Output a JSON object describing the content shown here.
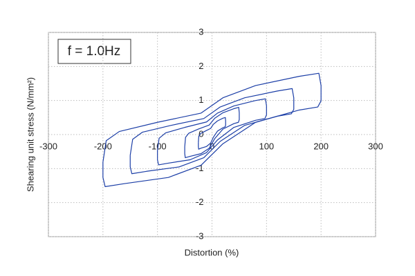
{
  "chart_data": {
    "type": "line",
    "annotation": "f = 1.0Hz",
    "x_label": "Distortion (%)",
    "y_label": "Shearing unit stress (N/mm²)",
    "xlim": [
      -300,
      300
    ],
    "xticks": [
      -300,
      -200,
      -100,
      0,
      100,
      200,
      300
    ],
    "ylim": [
      -3,
      3
    ],
    "yticks": [
      -3,
      -2,
      -1,
      0,
      1,
      2,
      3
    ],
    "grid": true,
    "series": [
      {
        "color": "#1a3da6",
        "x": [
          -200,
          -194,
          -170,
          -100,
          -20,
          20,
          80,
          160,
          196,
          200,
          200,
          194,
          160,
          80,
          20,
          -20,
          -80,
          -160,
          -196,
          -200,
          -200
        ],
        "values": [
          -0.81,
          -0.18,
          0.09,
          0.36,
          0.63,
          1.08,
          1.44,
          1.71,
          1.8,
          1.44,
          0.99,
          0.81,
          0.72,
          0.36,
          -0.27,
          -0.9,
          -1.26,
          -1.44,
          -1.53,
          -1.26,
          -0.81
        ]
      },
      {
        "color": "#1a3da6",
        "x": [
          -150,
          -145.5,
          -127.5,
          -75,
          -15,
          15,
          60,
          120,
          147,
          150,
          150,
          145.5,
          120,
          60,
          15,
          -15,
          -60,
          -120,
          -147,
          -150,
          -150
        ],
        "values": [
          -0.61,
          -0.14,
          0.07,
          0.27,
          0.47,
          0.81,
          1.08,
          1.28,
          1.35,
          1.08,
          0.74,
          0.61,
          0.54,
          0.27,
          -0.2,
          -0.68,
          -0.95,
          -1.08,
          -1.15,
          -0.95,
          -0.61
        ]
      },
      {
        "color": "#1a3da6",
        "x": [
          -100,
          -97,
          -85,
          -50,
          -10,
          10,
          40,
          80,
          98,
          100,
          100,
          97,
          80,
          40,
          10,
          -10,
          -40,
          -80,
          -98,
          -100,
          -100
        ],
        "values": [
          -0.47,
          -0.11,
          0.05,
          0.21,
          0.37,
          0.63,
          0.84,
          1.0,
          1.05,
          0.84,
          0.58,
          0.47,
          0.42,
          0.21,
          -0.16,
          -0.53,
          -0.74,
          -0.84,
          -0.89,
          -0.74,
          -0.47
        ]
      },
      {
        "color": "#1a3da6",
        "x": [
          -50,
          -48.5,
          -42.5,
          -25,
          -5,
          5,
          20,
          40,
          49,
          50,
          50,
          48.5,
          40,
          20,
          5,
          -5,
          -20,
          -40,
          -49,
          -50,
          -50
        ],
        "values": [
          -0.36,
          -0.08,
          0.04,
          0.16,
          0.28,
          0.48,
          0.64,
          0.76,
          0.8,
          0.64,
          0.44,
          0.36,
          0.32,
          0.16,
          -0.12,
          -0.4,
          -0.56,
          -0.64,
          -0.68,
          -0.56,
          -0.36
        ]
      },
      {
        "color": "#1a3da6",
        "x": [
          -25,
          -24.25,
          -21,
          -12.5,
          -2.5,
          2.5,
          10,
          20,
          24.5,
          25,
          25,
          24.25,
          20,
          10,
          2.5,
          -2.5,
          -10,
          -20,
          -24.5,
          -25,
          -25
        ],
        "values": [
          -0.23,
          -0.05,
          0.03,
          0.1,
          0.18,
          0.3,
          0.4,
          0.48,
          0.5,
          0.4,
          0.28,
          0.23,
          0.2,
          0.1,
          -0.08,
          -0.25,
          -0.35,
          -0.4,
          -0.43,
          -0.35,
          -0.23
        ]
      }
    ]
  }
}
